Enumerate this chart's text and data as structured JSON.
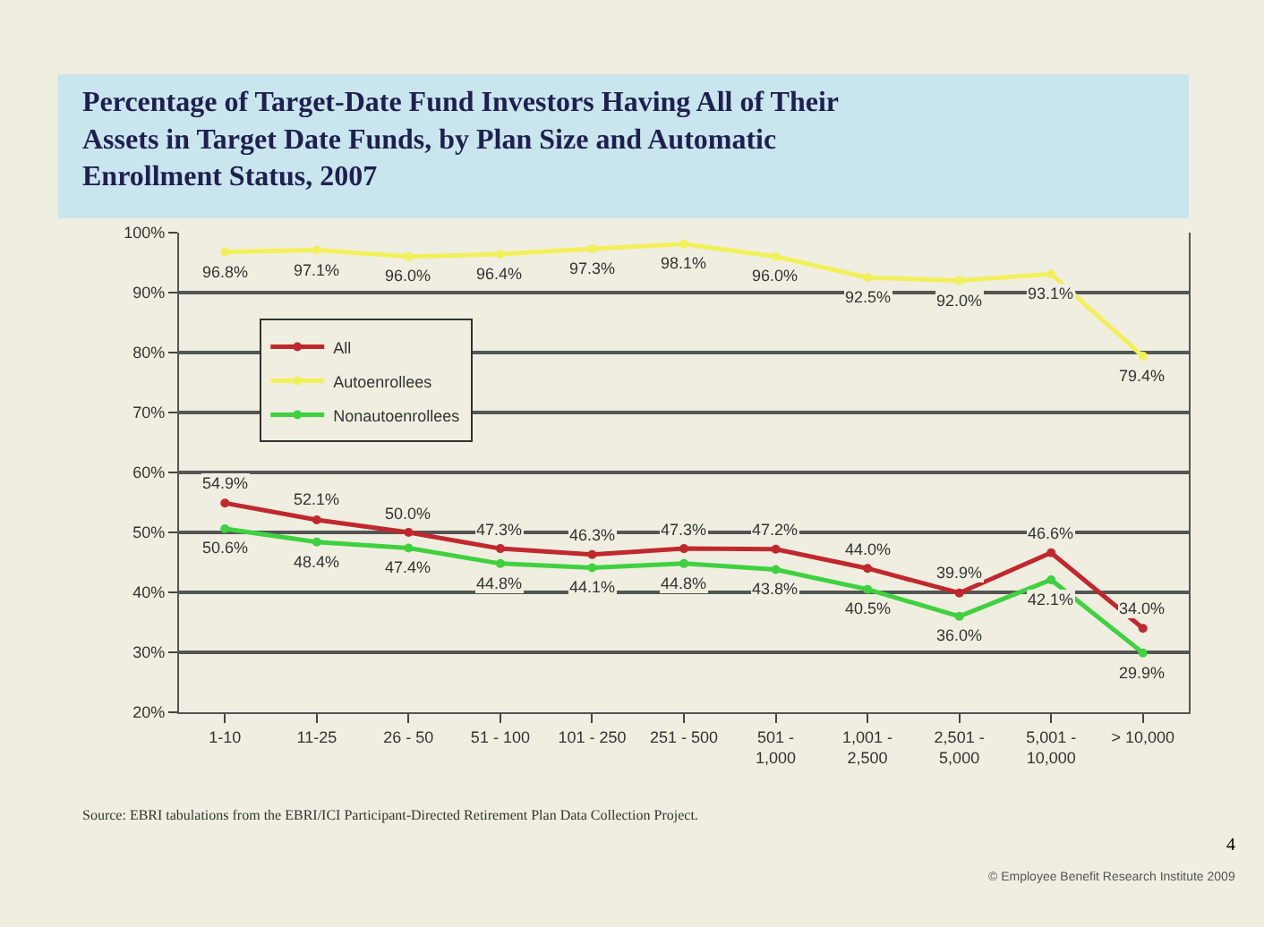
{
  "chart_data": {
    "type": "line",
    "title": "Percentage of Target-Date Fund Investors Having All of Their\nAssets in Target Date Funds, by Plan Size and Automatic\nEnrollment Status, 2007",
    "categories": [
      "1-10",
      "11-25",
      "26 - 50",
      "51 - 100",
      "101 - 250",
      "251 - 500",
      "501 -\n1,000",
      "1,001 -\n2,500",
      "2,501 -\n5,000",
      "5,001 -\n10,000",
      "> 10,000"
    ],
    "series": [
      {
        "name": "All",
        "color": "#c0282d",
        "values": [
          54.9,
          52.1,
          50.0,
          47.3,
          46.3,
          47.3,
          47.2,
          44.0,
          39.9,
          46.6,
          34.0
        ],
        "value_labels": [
          "54.9%",
          "52.1%",
          "50.0%",
          "47.3%",
          "46.3%",
          "47.3%",
          "47.2%",
          "44.0%",
          "39.9%",
          "46.6%",
          "34.0%"
        ]
      },
      {
        "name": "Autoenrollees",
        "color": "#f2f05a",
        "values": [
          96.8,
          97.1,
          96.0,
          96.4,
          97.3,
          98.1,
          96.0,
          92.5,
          92.0,
          93.1,
          79.4
        ],
        "value_labels": [
          "96.8%",
          "97.1%",
          "96.0%",
          "96.4%",
          "97.3%",
          "98.1%",
          "96.0%",
          "92.5%",
          "92.0%",
          "93.1%",
          "79.4%"
        ]
      },
      {
        "name": "Nonautoenrollees",
        "color": "#3fd13f",
        "values": [
          50.6,
          48.4,
          47.4,
          44.8,
          44.1,
          44.8,
          43.8,
          40.5,
          36.0,
          42.1,
          29.9
        ],
        "value_labels": [
          "50.6%",
          "48.4%",
          "47.4%",
          "44.8%",
          "44.1%",
          "44.8%",
          "43.8%",
          "40.5%",
          "36.0%",
          "42.1%",
          "29.9%"
        ]
      }
    ],
    "ylim": [
      20,
      100
    ],
    "yticks": [
      {
        "value": 20,
        "label": "20%"
      },
      {
        "value": 30,
        "label": "30%"
      },
      {
        "value": 40,
        "label": "40%"
      },
      {
        "value": 50,
        "label": "50%"
      },
      {
        "value": 60,
        "label": "60%"
      },
      {
        "value": 70,
        "label": "70%"
      },
      {
        "value": 80,
        "label": "80%"
      },
      {
        "value": 90,
        "label": "90%"
      },
      {
        "value": 100,
        "label": "100%"
      }
    ],
    "grid": "y",
    "legend": "top left",
    "marker": "circle",
    "line_style": "solid",
    "annotations": [
      "Source: EBRI tabulations from the EBRI/ICI Participant-Directed Retirement Plan Data Collection Project.",
      "4",
      "© Employee Benefit Research Institute 2009"
    ]
  }
}
